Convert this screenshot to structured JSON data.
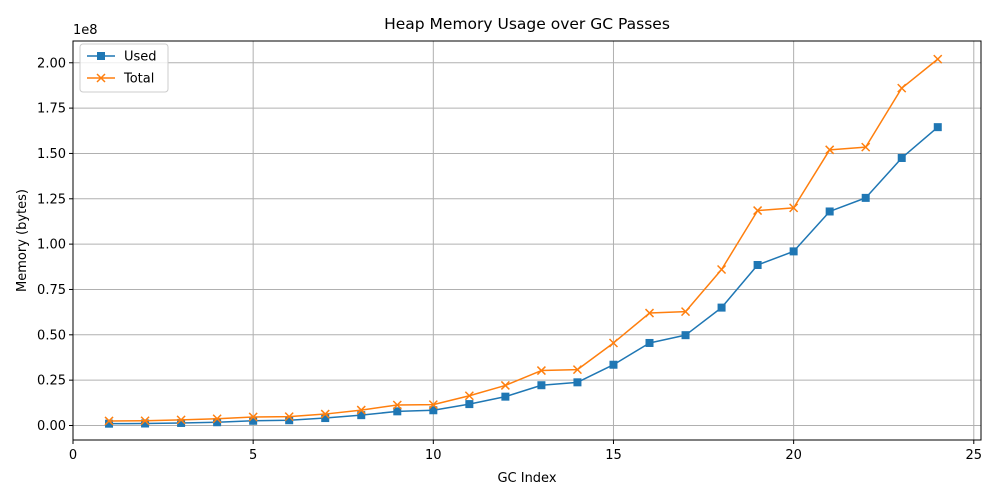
{
  "chart_data": {
    "type": "line",
    "title": "Heap Memory Usage over GC Passes",
    "xlabel": "GC Index",
    "ylabel": "Memory (bytes)",
    "y_offset_text": "1e8",
    "xlim": [
      0,
      25.2
    ],
    "ylim": [
      -8000000,
      212000000
    ],
    "xticks": [
      0,
      5,
      10,
      15,
      20,
      25
    ],
    "xtick_labels": [
      "0",
      "5",
      "10",
      "15",
      "20",
      "25"
    ],
    "yticks": [
      0,
      25000000,
      50000000,
      75000000,
      100000000,
      125000000,
      150000000,
      175000000,
      200000000
    ],
    "ytick_labels": [
      "0.00",
      "0.25",
      "0.50",
      "0.75",
      "1.00",
      "1.25",
      "1.50",
      "1.75",
      "2.00"
    ],
    "grid": true,
    "legend_position": "top-left",
    "x": [
      1,
      2,
      3,
      4,
      5,
      6,
      7,
      8,
      9,
      10,
      11,
      12,
      13,
      14,
      15,
      16,
      17,
      18,
      19,
      20,
      21,
      22,
      23,
      24
    ],
    "series": [
      {
        "name": "Used",
        "color": "#1f77b4",
        "marker": "square",
        "values": [
          1000000,
          1100000,
          1400000,
          1800000,
          2600000,
          2900000,
          4100000,
          5700000,
          7800000,
          8400000,
          11800000,
          15900000,
          22200000,
          23800000,
          33500000,
          45500000,
          49800000,
          65000000,
          88500000,
          96000000,
          118000000,
          125500000,
          147500000,
          164500000
        ]
      },
      {
        "name": "Total",
        "color": "#ff7f0e",
        "marker": "x",
        "values": [
          2500000,
          2600000,
          3100000,
          3700000,
          4700000,
          4900000,
          6300000,
          8500000,
          11300000,
          11500000,
          16400000,
          22100000,
          30300000,
          30800000,
          45500000,
          62000000,
          62800000,
          86000000,
          118500000,
          120000000,
          152000000,
          153500000,
          186000000,
          202000000
        ]
      }
    ]
  }
}
